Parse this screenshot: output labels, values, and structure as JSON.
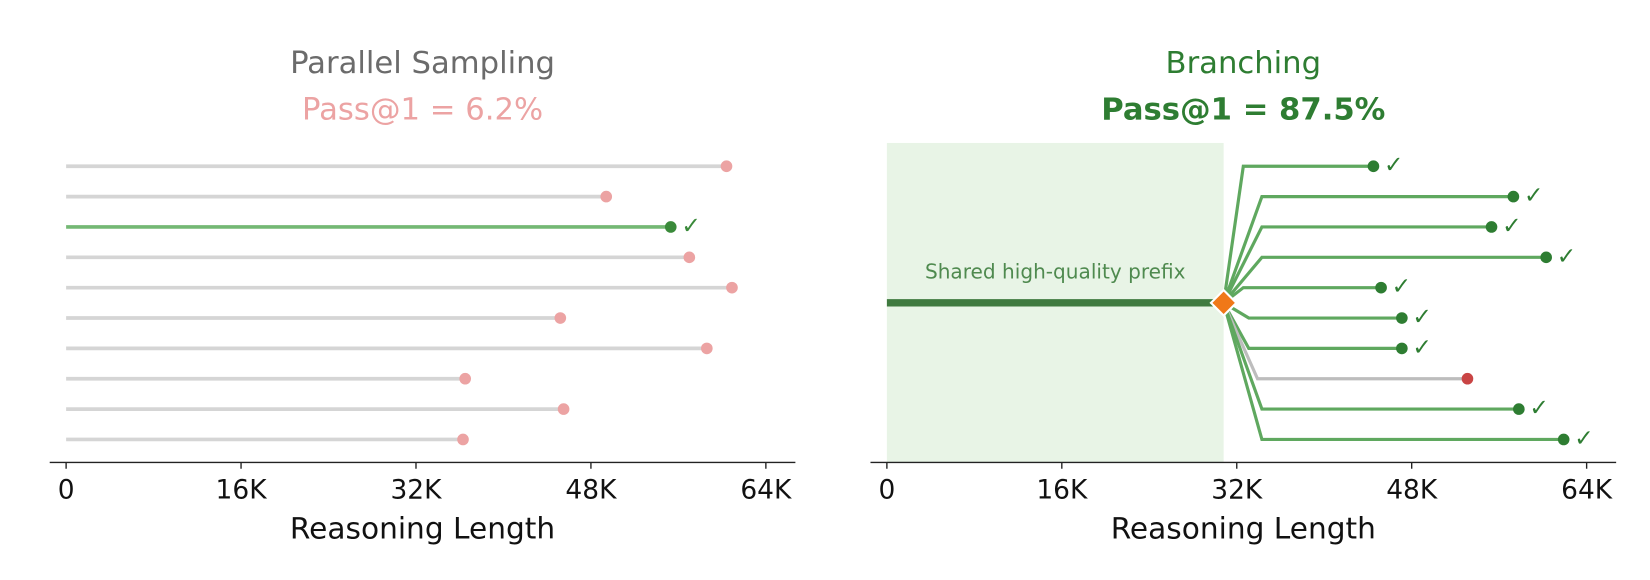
{
  "chart_data": [
    {
      "type": "parallel",
      "title": "Parallel Sampling",
      "subtitle": "Pass@1 = 6.2%",
      "xlabel": "Reasoning Length",
      "xlim": [
        -1500,
        66700
      ],
      "xticks": [
        0,
        {
          "value": 16000,
          "label": "16K"
        },
        {
          "value": 32000,
          "label": "32K"
        },
        {
          "value": 48000,
          "label": "48K"
        },
        {
          "value": 64000,
          "label": "64K"
        }
      ],
      "values": [
        60400,
        49400,
        55300,
        57000,
        60900,
        45200,
        58600,
        36500,
        45500,
        36300
      ],
      "correct": [
        false,
        false,
        true,
        false,
        false,
        false,
        false,
        false,
        false,
        false
      ],
      "check": "✓",
      "title_color": "#6b6b6b",
      "subtitle_color": "#eca3a3",
      "line_color": "#d5d5d5",
      "dot_color": "#eca3a3",
      "correct_line_color": "#74b874",
      "correct_color": "#3a8a3a"
    },
    {
      "type": "branching",
      "title": "Branching",
      "subtitle": "Pass@1 = 87.5%",
      "xlabel": "Reasoning Length",
      "annotation": "Shared high-quality prefix",
      "xlim": [
        -1500,
        66700
      ],
      "xticks": [
        0,
        {
          "value": 16000,
          "label": "16K"
        },
        {
          "value": 32000,
          "label": "32K"
        },
        {
          "value": 48000,
          "label": "48K"
        },
        {
          "value": 64000,
          "label": "64K"
        }
      ],
      "prefix_end": 30800,
      "branch_starts": [
        32600,
        34300,
        34300,
        34300,
        32600,
        33100,
        33100,
        33900,
        34300,
        34300
      ],
      "values": [
        44500,
        57300,
        55300,
        60300,
        45200,
        47100,
        47100,
        53100,
        57800,
        61900
      ],
      "correct": [
        true,
        true,
        true,
        true,
        true,
        true,
        true,
        false,
        true,
        true
      ],
      "check": "✓",
      "title_color": "#2e7d32",
      "subtitle_color": "#2e7d32",
      "shade_color": "#e8f4e6",
      "prefix_color": "#3f7a3f",
      "diamond_color": "#f07818",
      "line_color": "#5fa85f",
      "dot_color": "#2e7d32",
      "wrong_line_color": "#bdbdbd",
      "wrong_color": "#c94444"
    }
  ]
}
